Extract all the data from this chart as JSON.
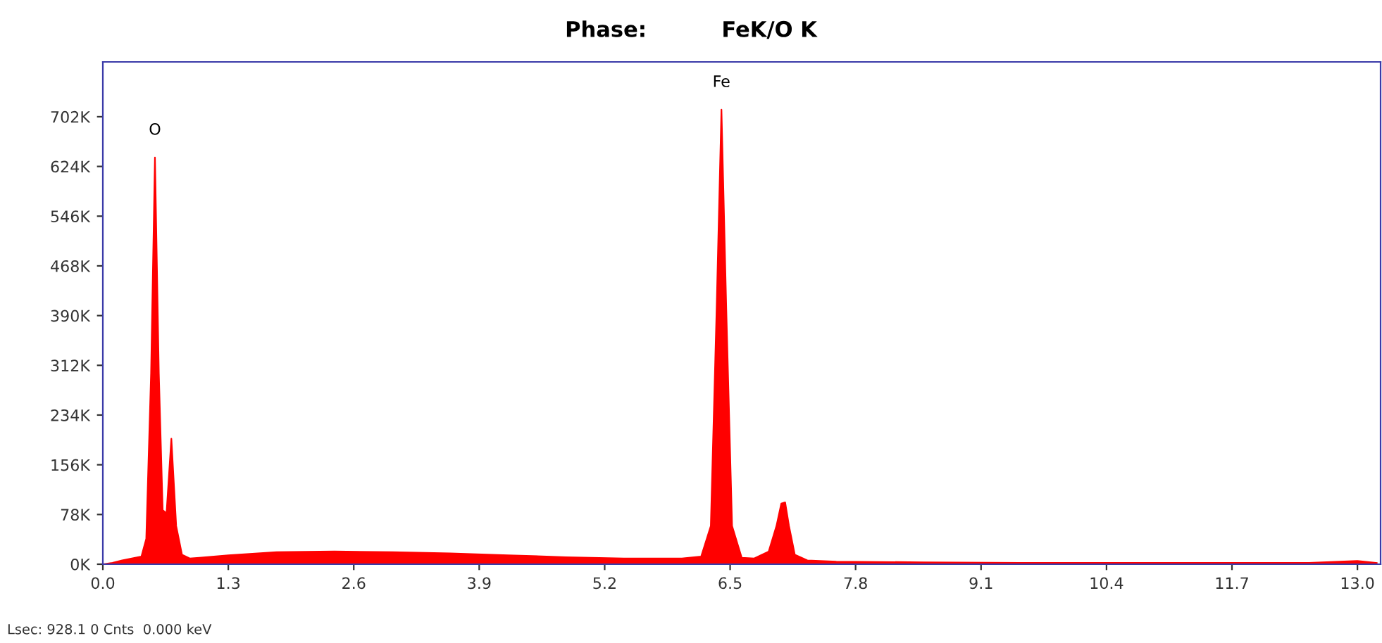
{
  "chart_data": {
    "type": "area",
    "title": "Phase:          FeK/O K",
    "x": [
      0,
      0.1,
      0.2,
      0.3,
      0.4,
      0.45,
      0.5,
      0.54,
      0.58,
      0.62,
      0.66,
      0.71,
      0.76,
      0.82,
      0.9,
      1.0,
      1.3,
      1.8,
      2.4,
      3.0,
      3.6,
      4.2,
      4.8,
      5.4,
      6.0,
      6.2,
      6.3,
      6.36,
      6.41,
      6.46,
      6.52,
      6.62,
      6.75,
      6.9,
      6.98,
      7.03,
      7.07,
      7.11,
      7.17,
      7.3,
      7.6,
      8.5,
      9.5,
      10.5,
      11.5,
      12.5,
      13.0,
      13.2
    ],
    "series": [
      {
        "color": "#ff0000",
        "values": [
          0,
          2000,
          6000,
          9000,
          12000,
          40000,
          300000,
          638000,
          300000,
          85000,
          80000,
          197000,
          60000,
          15000,
          9000,
          10000,
          14000,
          19000,
          20000,
          19000,
          17000,
          14000,
          11000,
          9000,
          9000,
          12000,
          60000,
          400000,
          713000,
          400000,
          60000,
          10000,
          9000,
          20000,
          60000,
          95000,
          97000,
          60000,
          15000,
          6000,
          4000,
          3000,
          2000,
          2000,
          2000,
          2000,
          5000,
          2000
        ]
      }
    ],
    "xlim": [
      0,
      13.24
    ],
    "ylim": [
      0,
      788000
    ],
    "xticks": [
      {
        "value": 0,
        "label": "0.0"
      },
      1.3,
      2.6,
      3.9,
      5.2,
      6.5,
      7.8,
      9.1,
      10.4,
      11.7,
      {
        "value": 13,
        "label": "13.0"
      }
    ],
    "yticks": [
      {
        "value": 0,
        "label": "0K"
      },
      {
        "value": 78000,
        "label": "78K"
      },
      {
        "value": 156000,
        "label": "156K"
      },
      {
        "value": 234000,
        "label": "234K"
      },
      {
        "value": 312000,
        "label": "312K"
      },
      {
        "value": 390000,
        "label": "390K"
      },
      {
        "value": 468000,
        "label": "468K"
      },
      {
        "value": 546000,
        "label": "546K"
      },
      {
        "value": 624000,
        "label": "624K"
      },
      {
        "value": 702000,
        "label": "702K"
      }
    ],
    "annotations": [
      {
        "text": "O",
        "x": 0.54,
        "y": 638000
      },
      {
        "text": "Fe",
        "x": 6.41,
        "y": 713000
      },
      "Lsec: 928.1 0 Cnts  0.000 keV"
    ],
    "grid": false,
    "legend": false
  }
}
